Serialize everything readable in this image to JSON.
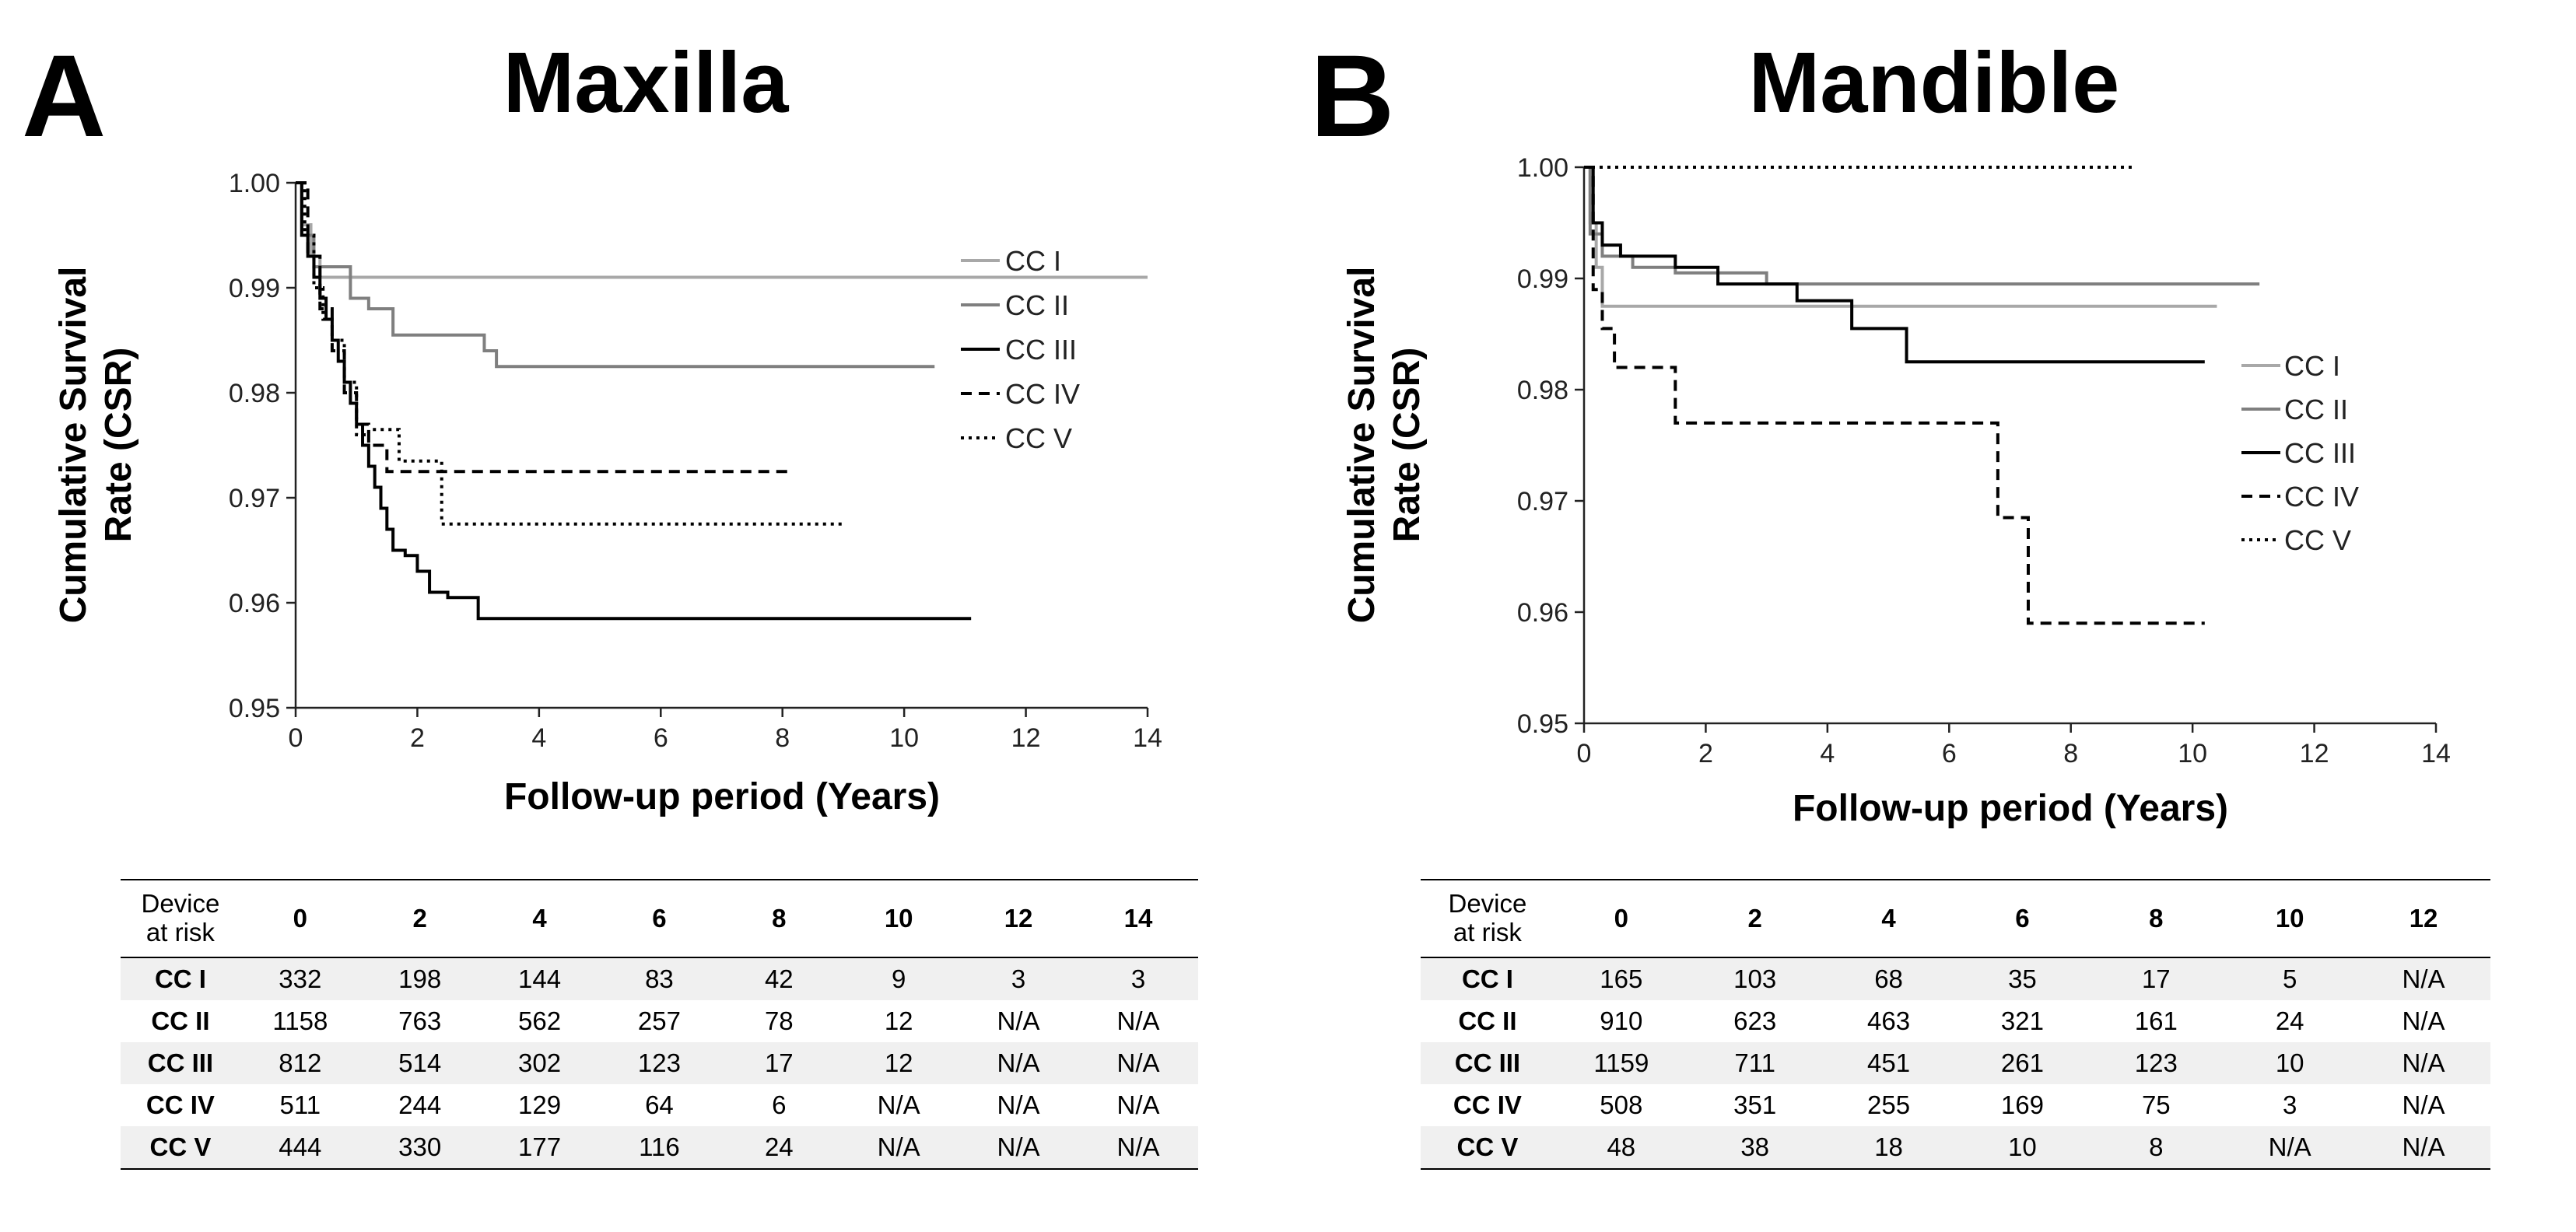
{
  "chart_data": [
    {
      "panel": "A",
      "type": "line",
      "title": "Maxilla",
      "xlabel": "Follow-up period (Years)",
      "ylabel": "Cumulative Survival Rate (CSR)",
      "xlim": [
        0,
        14
      ],
      "ylim": [
        0.95,
        1.0
      ],
      "xticks": [
        0,
        2,
        4,
        6,
        8,
        10,
        12,
        14
      ],
      "yticks": [
        "1.00",
        "0.99",
        "0.98",
        "0.97",
        "0.96",
        "0.95"
      ],
      "legend": {
        "position": "right",
        "entries": [
          "CC I",
          "CC II",
          "CC III",
          "CC IV",
          "CC V"
        ]
      },
      "series": [
        {
          "name": "CC I",
          "style": "solid",
          "color": "#a8a8a8",
          "x": [
            0,
            0.1,
            0.25,
            0.4,
            14
          ],
          "y": [
            1.0,
            0.996,
            0.993,
            0.991,
            0.991
          ]
        },
        {
          "name": "CC II",
          "style": "solid",
          "color": "#7f7f7f",
          "x": [
            0,
            0.1,
            0.3,
            0.9,
            1.2,
            1.6,
            3.1,
            3.3,
            10.5
          ],
          "y": [
            1.0,
            0.995,
            0.992,
            0.989,
            0.988,
            0.9855,
            0.984,
            0.9825,
            0.9825
          ]
        },
        {
          "name": "CC III",
          "style": "solid",
          "color": "#000000",
          "x": [
            0,
            0.1,
            0.2,
            0.3,
            0.4,
            0.5,
            0.6,
            0.7,
            0.8,
            0.9,
            1.0,
            1.1,
            1.2,
            1.3,
            1.4,
            1.5,
            1.6,
            1.8,
            2.0,
            2.2,
            2.5,
            3.0,
            11.1
          ],
          "y": [
            1.0,
            0.995,
            0.993,
            0.991,
            0.989,
            0.987,
            0.985,
            0.983,
            0.981,
            0.979,
            0.977,
            0.975,
            0.973,
            0.971,
            0.969,
            0.967,
            0.965,
            0.9645,
            0.963,
            0.961,
            0.9605,
            0.9585,
            0.9585
          ]
        },
        {
          "name": "CC IV",
          "style": "dashed",
          "color": "#000000",
          "x": [
            0,
            0.2,
            0.4,
            0.6,
            0.8,
            1.0,
            1.2,
            1.5,
            8.1
          ],
          "y": [
            1.0,
            0.993,
            0.988,
            0.984,
            0.98,
            0.977,
            0.975,
            0.9725,
            0.9725
          ]
        },
        {
          "name": "CC V",
          "style": "dotted",
          "color": "#000000",
          "x": [
            0,
            0.15,
            0.3,
            0.45,
            0.6,
            0.8,
            1.0,
            1.2,
            1.7,
            2.4,
            9.0
          ],
          "y": [
            1.0,
            0.995,
            0.99,
            0.987,
            0.985,
            0.981,
            0.976,
            0.9765,
            0.9735,
            0.9675,
            0.9675
          ]
        }
      ]
    },
    {
      "panel": "B",
      "type": "line",
      "title": "Mandible",
      "xlabel": "Follow-up period (Years)",
      "ylabel": "Cumulative Survival Rate (CSR)",
      "xlim": [
        0,
        14
      ],
      "ylim": [
        0.95,
        1.0
      ],
      "xticks": [
        0,
        2,
        4,
        6,
        8,
        10,
        12,
        14
      ],
      "yticks": [
        "1.00",
        "0.99",
        "0.98",
        "0.97",
        "0.96",
        "0.95"
      ],
      "legend": {
        "position": "right",
        "entries": [
          "CC I",
          "CC II",
          "CC III",
          "CC IV",
          "CC V"
        ]
      },
      "series": [
        {
          "name": "CC I",
          "style": "solid",
          "color": "#a8a8a8",
          "x": [
            0,
            0.1,
            0.2,
            0.3,
            10.4
          ],
          "y": [
            1.0,
            0.995,
            0.991,
            0.9875,
            0.9875
          ]
        },
        {
          "name": "CC II",
          "style": "solid",
          "color": "#7f7f7f",
          "x": [
            0,
            0.1,
            0.3,
            0.8,
            1.5,
            3.0,
            11.1
          ],
          "y": [
            1.0,
            0.994,
            0.992,
            0.991,
            0.9905,
            0.9895,
            0.9895
          ]
        },
        {
          "name": "CC III",
          "style": "solid",
          "color": "#000000",
          "x": [
            0,
            0.15,
            0.3,
            0.6,
            1.5,
            2.2,
            3.5,
            4.4,
            5.3,
            10.2
          ],
          "y": [
            1.0,
            0.995,
            0.993,
            0.992,
            0.991,
            0.9895,
            0.988,
            0.9855,
            0.9825,
            0.9825
          ]
        },
        {
          "name": "CC IV",
          "style": "dashed",
          "color": "#000000",
          "x": [
            0,
            0.15,
            0.3,
            0.5,
            1.5,
            6.8,
            7.3,
            10.2
          ],
          "y": [
            1.0,
            0.989,
            0.9855,
            0.982,
            0.977,
            0.9685,
            0.959,
            0.959
          ]
        },
        {
          "name": "CC V",
          "style": "dotted",
          "color": "#000000",
          "x": [
            0,
            9.0
          ],
          "y": [
            1.0,
            1.0
          ]
        }
      ]
    }
  ],
  "panels": [
    {
      "letter": "A",
      "title": "Maxilla",
      "table": {
        "header_label_line1": "Device",
        "header_label_line2": "at risk",
        "columns": [
          "0",
          "2",
          "4",
          "6",
          "8",
          "10",
          "12",
          "14"
        ],
        "rows": [
          {
            "label": "CC I",
            "values": [
              "332",
              "198",
              "144",
              "83",
              "42",
              "9",
              "3",
              "3"
            ]
          },
          {
            "label": "CC II",
            "values": [
              "1158",
              "763",
              "562",
              "257",
              "78",
              "12",
              "N/A",
              "N/A"
            ]
          },
          {
            "label": "CC III",
            "values": [
              "812",
              "514",
              "302",
              "123",
              "17",
              "12",
              "N/A",
              "N/A"
            ]
          },
          {
            "label": "CC IV",
            "values": [
              "511",
              "244",
              "129",
              "64",
              "6",
              "N/A",
              "N/A",
              "N/A"
            ]
          },
          {
            "label": "CC V",
            "values": [
              "444",
              "330",
              "177",
              "116",
              "24",
              "N/A",
              "N/A",
              "N/A"
            ]
          }
        ]
      }
    },
    {
      "letter": "B",
      "title": "Mandible",
      "table": {
        "header_label_line1": "Device",
        "header_label_line2": "at risk",
        "columns": [
          "0",
          "2",
          "4",
          "6",
          "8",
          "10",
          "12"
        ],
        "rows": [
          {
            "label": "CC I",
            "values": [
              "165",
              "103",
              "68",
              "35",
              "17",
              "5",
              "N/A"
            ]
          },
          {
            "label": "CC II",
            "values": [
              "910",
              "623",
              "463",
              "321",
              "161",
              "24",
              "N/A"
            ]
          },
          {
            "label": "CC III",
            "values": [
              "1159",
              "711",
              "451",
              "261",
              "123",
              "10",
              "N/A"
            ]
          },
          {
            "label": "CC IV",
            "values": [
              "508",
              "351",
              "255",
              "169",
              "75",
              "3",
              "N/A"
            ]
          },
          {
            "label": "CC V",
            "values": [
              "48",
              "38",
              "18",
              "10",
              "8",
              "N/A",
              "N/A"
            ]
          }
        ]
      }
    }
  ]
}
